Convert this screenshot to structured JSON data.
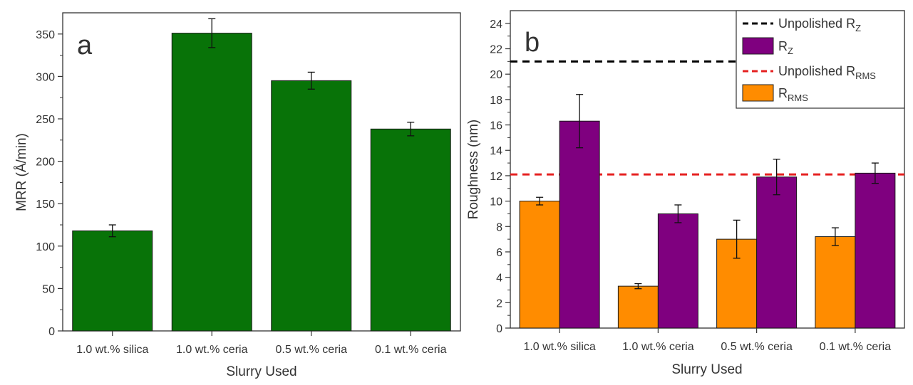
{
  "chart_data": [
    {
      "type": "bar",
      "panel_label": "a",
      "categories": [
        "1.0 wt.% silica",
        "1.0 wt.% ceria",
        "0.5 wt.% ceria",
        "0.1 wt.% ceria"
      ],
      "series": [
        {
          "values": [
            118,
            351,
            295,
            238
          ],
          "errors": [
            7,
            17,
            10,
            8
          ],
          "color": "#087308"
        }
      ],
      "xlabel": "Slurry Used",
      "ylabel": "MRR (Å/min)",
      "ylim": [
        0,
        375
      ],
      "yticks": [
        0,
        50,
        100,
        150,
        200,
        250,
        300,
        350
      ],
      "grid": false,
      "legend": "none"
    },
    {
      "type": "bar",
      "panel_label": "b",
      "categories": [
        "1.0 wt.% silica",
        "1.0 wt.% ceria",
        "0.5 wt.% ceria",
        "0.1 wt.% ceria"
      ],
      "series": [
        {
          "name": "R",
          "name_sub": "RMS",
          "values": [
            10.0,
            3.3,
            7.0,
            7.2
          ],
          "errors": [
            0.3,
            0.2,
            1.5,
            0.7
          ],
          "color": "#ff8c00"
        },
        {
          "name": "R",
          "name_sub": "Z",
          "values": [
            16.3,
            9.0,
            11.9,
            12.2
          ],
          "errors": [
            2.1,
            0.7,
            1.4,
            0.8
          ],
          "color": "#7f007f"
        }
      ],
      "reference_lines": [
        {
          "name": "Unpolished R",
          "name_sub": "Z",
          "value": 21.0,
          "color": "#000000",
          "style": "dashed"
        },
        {
          "name": "Unpolished R",
          "name_sub": "RMS",
          "value": 12.1,
          "color": "#e52020",
          "style": "dashed"
        }
      ],
      "xlabel": "Slurry Used",
      "ylabel": "Roughness (nm)",
      "ylim": [
        0,
        25
      ],
      "yticks": [
        0,
        2,
        4,
        6,
        8,
        10,
        12,
        14,
        16,
        18,
        20,
        22,
        24
      ],
      "grid": false,
      "legend": "top-right"
    }
  ]
}
